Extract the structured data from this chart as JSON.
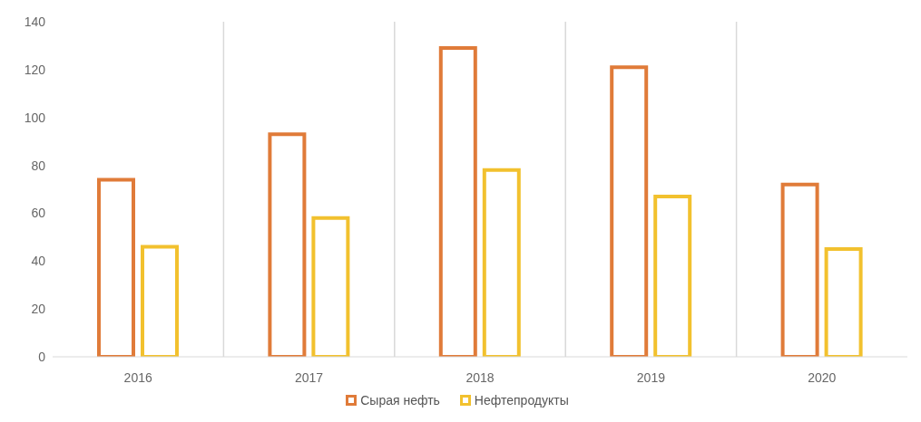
{
  "chart_data": {
    "type": "bar",
    "categories": [
      "2016",
      "2017",
      "2018",
      "2019",
      "2020"
    ],
    "series": [
      {
        "name": "Сырая нефть",
        "color": "#e07b39",
        "values": [
          74,
          93,
          129,
          121,
          72
        ]
      },
      {
        "name": "Нефтепродукты",
        "color": "#f2c12e",
        "values": [
          46,
          58,
          78,
          67,
          45
        ]
      }
    ],
    "ylim": [
      0,
      140
    ],
    "yticks": [
      0,
      20,
      40,
      60,
      80,
      100,
      120,
      140
    ],
    "grid": "x",
    "legend": "bottom"
  }
}
